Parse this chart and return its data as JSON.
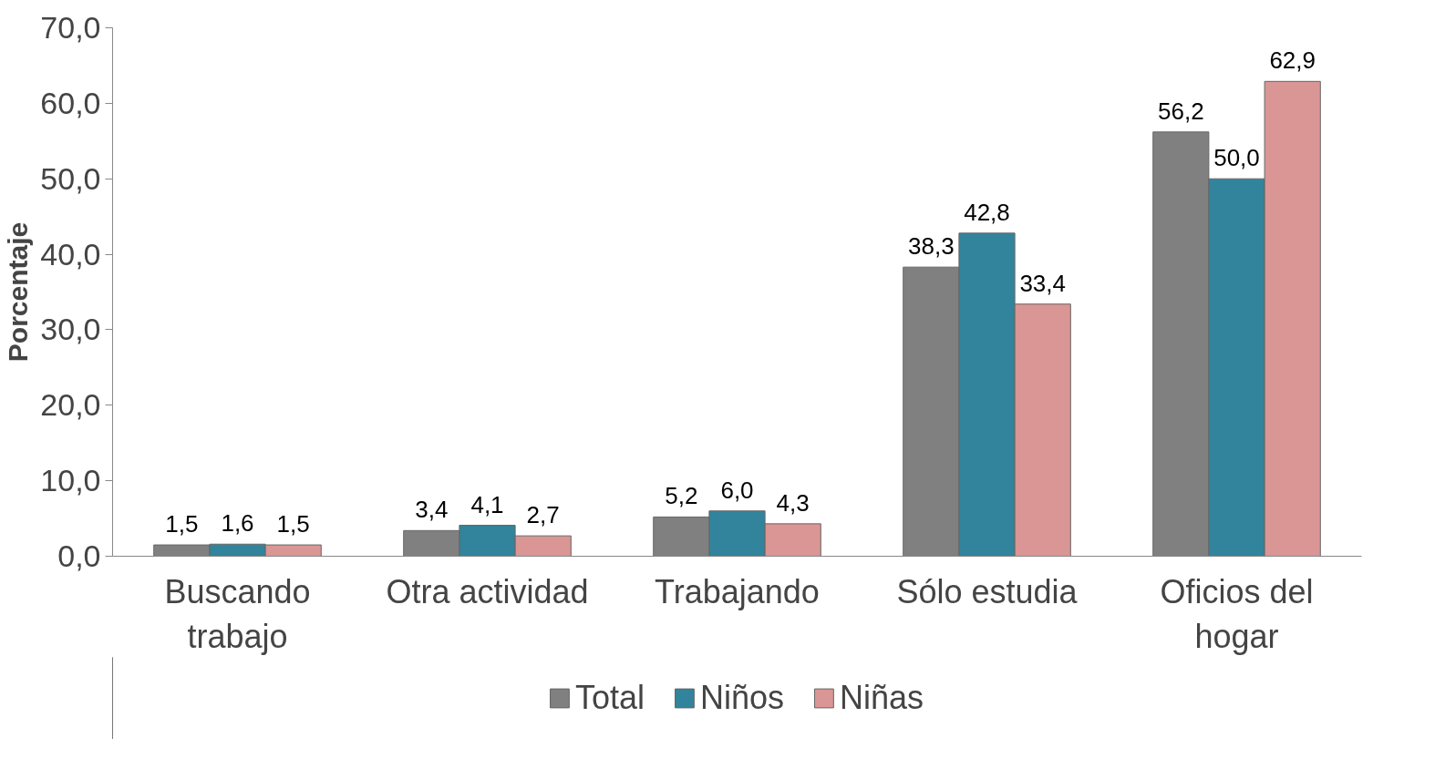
{
  "chart_data": {
    "type": "bar",
    "ylabel": "Porcentaje",
    "categories": [
      "Buscando trabajo",
      "Otra actividad",
      "Trabajando",
      "Sólo estudia",
      "Oficios del hogar"
    ],
    "series": [
      {
        "name": "Total",
        "color": "#808080",
        "values": [
          1.5,
          3.4,
          5.2,
          38.3,
          56.2
        ],
        "value_labels": [
          "1,5",
          "3,4",
          "5,2",
          "38,3",
          "56,2"
        ]
      },
      {
        "name": "Niños",
        "color": "#31849b",
        "values": [
          1.6,
          4.1,
          6.0,
          42.8,
          50.0
        ],
        "value_labels": [
          "1,6",
          "4,1",
          "6,0",
          "42,8",
          "50,0"
        ]
      },
      {
        "name": "Niñas",
        "color": "#d99694",
        "values": [
          1.5,
          2.7,
          4.3,
          33.4,
          62.9
        ],
        "value_labels": [
          "1,5",
          "2,7",
          "4,3",
          "33,4",
          "62,9"
        ]
      }
    ],
    "ylim": [
      0,
      70
    ],
    "yticks": [
      {
        "value": 0,
        "label": "0,0"
      },
      {
        "value": 10,
        "label": "10,0"
      },
      {
        "value": 20,
        "label": "20,0"
      },
      {
        "value": 30,
        "label": "30,0"
      },
      {
        "value": 40,
        "label": "40,0"
      },
      {
        "value": 50,
        "label": "50,0"
      },
      {
        "value": 60,
        "label": "60,0"
      },
      {
        "value": 70,
        "label": "70,0"
      }
    ],
    "grid": false,
    "legend": "bottom"
  }
}
